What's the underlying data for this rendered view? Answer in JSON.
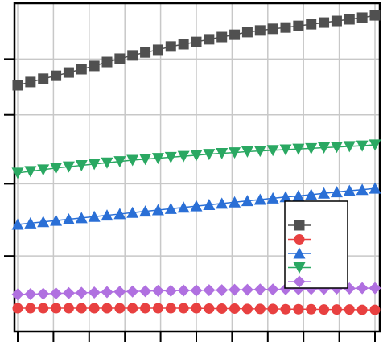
{
  "chart_data": {
    "type": "line",
    "x": [
      0,
      1,
      2,
      3,
      4,
      5,
      6,
      7,
      8,
      9,
      10,
      11,
      12,
      13,
      14,
      15,
      16,
      17,
      18,
      19,
      20,
      21,
      22,
      23,
      24,
      25,
      26,
      27,
      28
    ],
    "xlim": [
      0,
      28
    ],
    "xticks": [
      0,
      2.8,
      5.6,
      8.4,
      11.2,
      14,
      16.8,
      19.6,
      22.4,
      25.2,
      28
    ],
    "ylim": [
      0,
      100
    ],
    "yticks": [
      23,
      45,
      66,
      83
    ],
    "grid": true,
    "legend": "lower right",
    "series": [
      {
        "color": "#505050",
        "marker": "square",
        "values": [
          75,
          76,
          77,
          77.9,
          78.9,
          79.9,
          80.9,
          82.1,
          83.1,
          84.1,
          85,
          85.8,
          86.8,
          87.5,
          88.2,
          89,
          89.7,
          90.4,
          91.2,
          91.7,
          92.2,
          92.6,
          93.1,
          93.6,
          94.1,
          94.6,
          95.1,
          95.6,
          96.3
        ]
      },
      {
        "color": "#e84040",
        "marker": "circle",
        "values": [
          7.1,
          7.1,
          7.1,
          7.1,
          7.1,
          7.1,
          7.1,
          7.1,
          7.1,
          7.1,
          7.1,
          7.1,
          7.1,
          7.1,
          7.1,
          7.0,
          7.0,
          7.0,
          6.9,
          6.9,
          6.9,
          6.8,
          6.8,
          6.8,
          6.7,
          6.7,
          6.7,
          6.6,
          6.6
        ]
      },
      {
        "color": "#2a6fd6",
        "marker": "triangle-up",
        "values": [
          32.6,
          33,
          33.4,
          33.8,
          34.2,
          34.6,
          35,
          35.4,
          35.8,
          36.2,
          36.6,
          37,
          37.4,
          37.8,
          38.2,
          38.6,
          39,
          39.4,
          39.8,
          40.2,
          40.6,
          41,
          41.3,
          41.7,
          42.1,
          42.5,
          42.9,
          43.2,
          43.6
        ]
      },
      {
        "color": "#2aa862",
        "marker": "triangle-down",
        "values": [
          48.3,
          48.8,
          49.3,
          49.8,
          50.2,
          50.6,
          51,
          51.4,
          51.8,
          52.2,
          52.5,
          52.8,
          53.1,
          53.4,
          53.7,
          54,
          54.3,
          54.5,
          54.8,
          55,
          55.2,
          55.4,
          55.6,
          55.8,
          56,
          56.2,
          56.4,
          56.6,
          56.9
        ]
      },
      {
        "color": "#b070e0",
        "marker": "diamond",
        "values": [
          11.3,
          11.4,
          11.5,
          11.6,
          11.7,
          11.8,
          11.9,
          12,
          12.1,
          12.2,
          12.3,
          12.4,
          12.4,
          12.5,
          12.5,
          12.6,
          12.6,
          12.7,
          12.7,
          12.8,
          12.8,
          12.9,
          12.9,
          13,
          13,
          13.1,
          13.1,
          13.2,
          13.2
        ]
      }
    ]
  }
}
